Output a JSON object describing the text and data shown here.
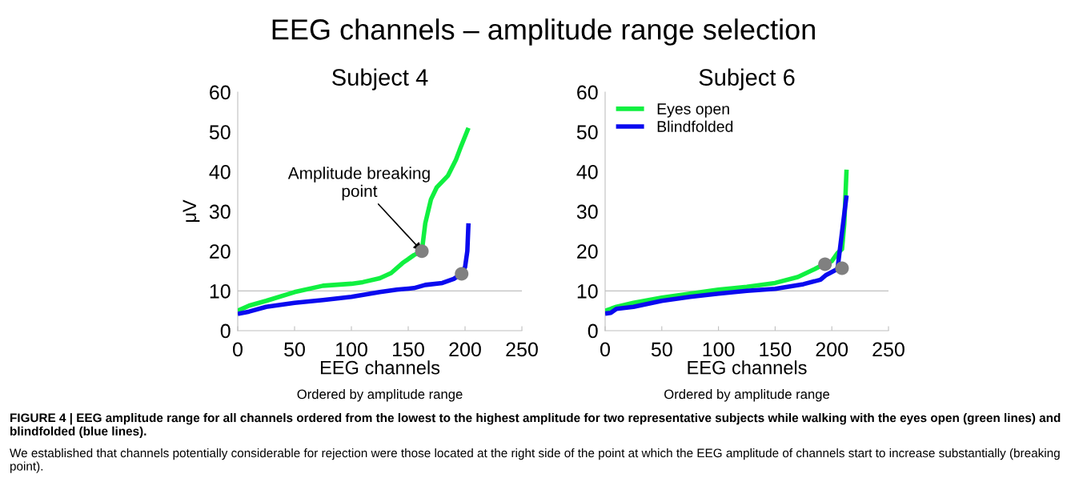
{
  "chart_data": [
    {
      "type": "line",
      "title": "Subject 4",
      "xlabel": "EEG channels",
      "ylabel": "μV",
      "annotations": [
        "Ordered by amplitude range",
        "EEG channels – amplitude range selection",
        "FIGURE 4 | EEG amplitude range for all channels ordered from the lowest to the highest amplitude for two representative subjects while walking with the eyes open (green lines) and blindfolded (blue lines).",
        "We established that channels potentially considerable for rejection were those located at the right side of the point at which the EEG amplitude of channels start to increase substantially (breaking point).",
        {
          "text": "Amplitude breaking\npoint",
          "x": 162,
          "y": 20
        }
      ],
      "xlim": [
        0,
        250
      ],
      "xticks": [
        0,
        50,
        100,
        150,
        200,
        250
      ],
      "ylim": [
        0,
        60
      ],
      "yticks": [
        0,
        10,
        20,
        30,
        40,
        50,
        60
      ],
      "ref_lines": [
        {
          "axis": "y",
          "value": 10,
          "color": "#c0c0c0"
        }
      ],
      "series": [
        {
          "color": "#10f040",
          "x": [
            0,
            10,
            25,
            50,
            75,
            100,
            110,
            125,
            135,
            145,
            155,
            162,
            165,
            170,
            175,
            185,
            192,
            196,
            203
          ],
          "values": [
            5,
            6.3,
            7.5,
            9.7,
            11.3,
            11.8,
            12.2,
            13.2,
            14.5,
            17,
            19,
            20,
            27,
            33,
            36,
            39,
            43,
            46,
            51
          ]
        },
        {
          "color": "#0a0aef",
          "x": [
            0,
            10,
            25,
            50,
            75,
            100,
            125,
            140,
            155,
            165,
            180,
            190,
            197,
            200,
            202,
            203
          ],
          "values": [
            4.2,
            4.8,
            6,
            7,
            7.7,
            8.5,
            9.7,
            10.3,
            10.7,
            11.5,
            12,
            13,
            14.3,
            16,
            20,
            27
          ]
        },
        {
          "type": "scatter",
          "color": "#808080",
          "marker": "circle",
          "x": [
            162,
            197
          ],
          "values": [
            20,
            14.3
          ]
        }
      ]
    },
    {
      "type": "line",
      "title": "Subject 6",
      "xlabel": "EEG channels",
      "legend": "top left",
      "annotations": [
        "Ordered by amplitude range"
      ],
      "xlim": [
        0,
        250
      ],
      "xticks": [
        0,
        50,
        100,
        150,
        200,
        250
      ],
      "ylim": [
        0,
        60
      ],
      "yticks": [
        0,
        10,
        20,
        30,
        40,
        50,
        60
      ],
      "ref_lines": [
        {
          "axis": "y",
          "value": 10,
          "color": "#c0c0c0"
        }
      ],
      "series": [
        {
          "name": "Eyes open",
          "color": "#10f040",
          "x": [
            0,
            10,
            25,
            50,
            75,
            100,
            125,
            150,
            170,
            185,
            195,
            200,
            205,
            209,
            211,
            213
          ],
          "values": [
            5,
            6,
            7,
            8.3,
            9.3,
            10.3,
            11,
            12,
            13.5,
            15.5,
            17,
            17.5,
            19.5,
            20.5,
            27,
            40.5
          ]
        },
        {
          "name": "Blindfolded",
          "color": "#0a0aef",
          "x": [
            0,
            5,
            10,
            25,
            50,
            75,
            100,
            125,
            150,
            175,
            190,
            195,
            205,
            213
          ],
          "values": [
            4.3,
            4.5,
            5.5,
            6,
            7.5,
            8.5,
            9.3,
            10,
            10.5,
            11.7,
            12.8,
            14,
            15.5,
            34
          ]
        },
        {
          "type": "scatter",
          "color": "#808080",
          "marker": "circle",
          "x": [
            194,
            209
          ],
          "values": [
            16.7,
            15.7
          ]
        }
      ]
    }
  ]
}
